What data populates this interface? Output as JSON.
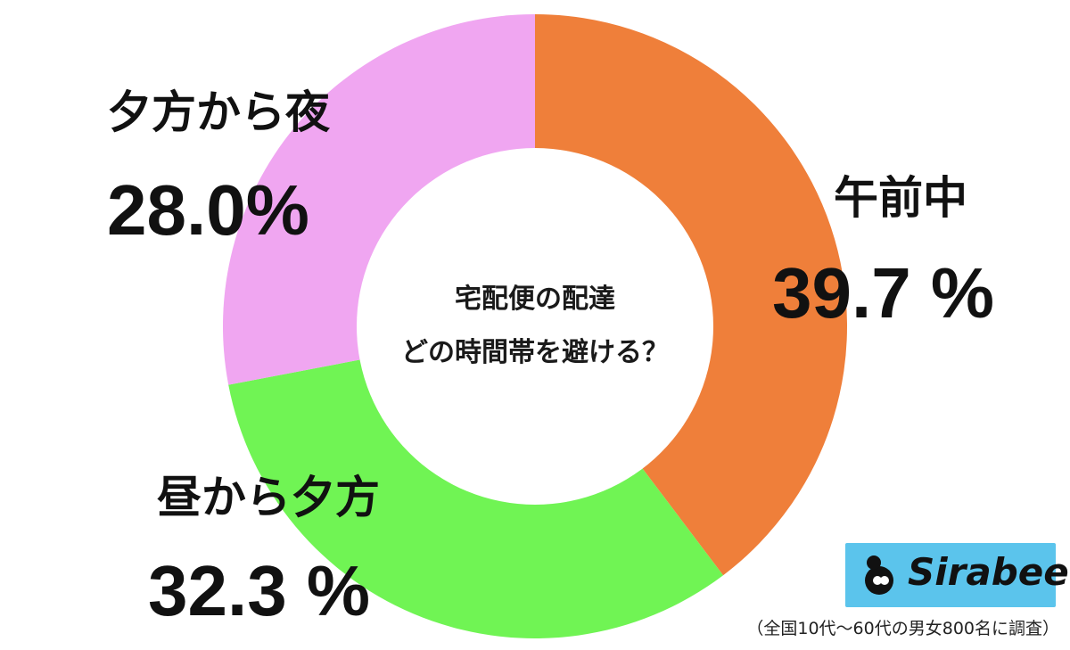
{
  "chart_data": {
    "type": "pie",
    "title_lines": [
      "宅配便の配達",
      "どの時間帯を避ける？"
    ],
    "slices": [
      {
        "name": "午前中",
        "value": 39.7,
        "label": "39.7 %",
        "color": "#ef7f3a"
      },
      {
        "name": "昼から夕方",
        "value": 32.3,
        "label": "32.3 %",
        "color": "#70f454"
      },
      {
        "name": "夕方から夜",
        "value": 28.0,
        "label": "28.0%",
        "color": "#f0a6f1"
      }
    ]
  },
  "brand": {
    "name": "Sirabee",
    "bg_color": "#5bc4ec"
  },
  "footnote": "（全国10代〜60代の男女800名に調査）"
}
